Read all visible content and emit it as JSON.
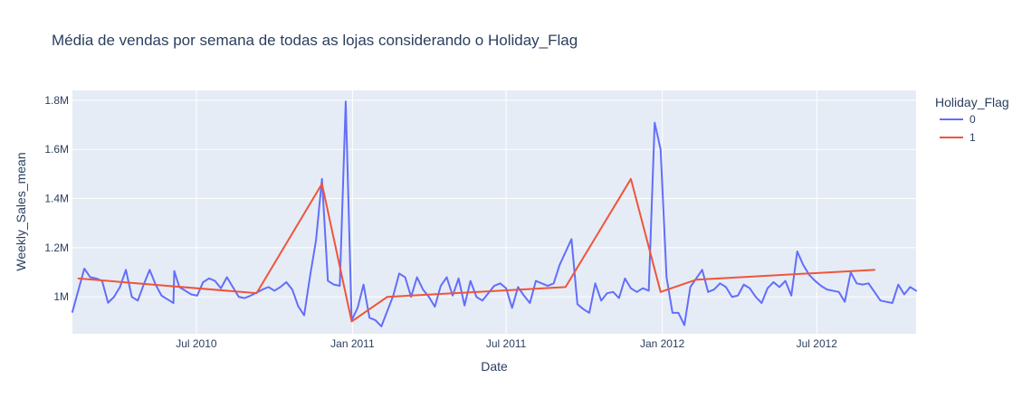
{
  "chart_data": {
    "type": "line",
    "title": "Média de vendas por semana de todas as lojas considerando o Holiday_Flag",
    "xlabel": "Date",
    "ylabel": "Weekly_Sales_mean",
    "x_range": [
      "2010-02-05",
      "2012-10-26"
    ],
    "y_range": [
      850000,
      1840000
    ],
    "x_ticks": [
      {
        "date": "2010-07-01",
        "label": "Jul 2010"
      },
      {
        "date": "2011-01-01",
        "label": "Jan 2011"
      },
      {
        "date": "2011-07-01",
        "label": "Jul 2011"
      },
      {
        "date": "2012-01-01",
        "label": "Jan 2012"
      },
      {
        "date": "2012-07-01",
        "label": "Jul 2012"
      }
    ],
    "y_ticks": [
      {
        "value": 1000000,
        "label": "1M"
      },
      {
        "value": 1200000,
        "label": "1.2M"
      },
      {
        "value": 1400000,
        "label": "1.4M"
      },
      {
        "value": 1600000,
        "label": "1.6M"
      },
      {
        "value": 1800000,
        "label": "1.8M"
      }
    ],
    "grid": true,
    "legend": {
      "title": "Holiday_Flag",
      "placement": "top-right"
    },
    "series": [
      {
        "name": "0",
        "color": "#636efa",
        "points": [
          [
            "2010-02-05",
            939000
          ],
          [
            "2010-02-19",
            1115000
          ],
          [
            "2010-02-26",
            1080000
          ],
          [
            "2010-03-05",
            1075000
          ],
          [
            "2010-03-12",
            1065000
          ],
          [
            "2010-03-19",
            976000
          ],
          [
            "2010-03-26",
            1000000
          ],
          [
            "2010-04-02",
            1040000
          ],
          [
            "2010-04-09",
            1110000
          ],
          [
            "2010-04-16",
            1000000
          ],
          [
            "2010-04-23",
            985000
          ],
          [
            "2010-04-30",
            1050000
          ],
          [
            "2010-05-07",
            1110000
          ],
          [
            "2010-05-14",
            1050000
          ],
          [
            "2010-05-21",
            1005000
          ],
          [
            "2010-05-28",
            990000
          ],
          [
            "2010-06-04",
            975000
          ],
          [
            "2010-06-05",
            1105000
          ],
          [
            "2010-06-11",
            1040000
          ],
          [
            "2010-06-18",
            1025000
          ],
          [
            "2010-06-25",
            1010000
          ],
          [
            "2010-07-02",
            1005000
          ],
          [
            "2010-07-09",
            1060000
          ],
          [
            "2010-07-16",
            1075000
          ],
          [
            "2010-07-23",
            1065000
          ],
          [
            "2010-07-30",
            1035000
          ],
          [
            "2010-08-06",
            1080000
          ],
          [
            "2010-08-13",
            1040000
          ],
          [
            "2010-08-20",
            1000000
          ],
          [
            "2010-08-27",
            995000
          ],
          [
            "2010-09-03",
            1005000
          ],
          [
            "2010-09-17",
            1030000
          ],
          [
            "2010-09-24",
            1040000
          ],
          [
            "2010-10-01",
            1025000
          ],
          [
            "2010-10-08",
            1040000
          ],
          [
            "2010-10-15",
            1060000
          ],
          [
            "2010-10-22",
            1030000
          ],
          [
            "2010-10-29",
            962000
          ],
          [
            "2010-11-05",
            925000
          ],
          [
            "2010-11-12",
            1085000
          ],
          [
            "2010-11-19",
            1230000
          ],
          [
            "2010-11-26",
            1480000
          ],
          [
            "2010-12-03",
            1065000
          ],
          [
            "2010-12-10",
            1050000
          ],
          [
            "2010-12-17",
            1045000
          ],
          [
            "2010-12-24",
            1795000
          ],
          [
            "2010-12-31",
            905000
          ],
          [
            "2011-01-07",
            955000
          ],
          [
            "2011-01-14",
            1050000
          ],
          [
            "2011-01-21",
            915000
          ],
          [
            "2011-01-28",
            905000
          ],
          [
            "2011-02-04",
            880000
          ],
          [
            "2011-02-18",
            1005000
          ],
          [
            "2011-02-25",
            1095000
          ],
          [
            "2011-03-04",
            1080000
          ],
          [
            "2011-03-11",
            1000000
          ],
          [
            "2011-03-18",
            1080000
          ],
          [
            "2011-03-25",
            1030000
          ],
          [
            "2011-04-01",
            1000000
          ],
          [
            "2011-04-08",
            960000
          ],
          [
            "2011-04-15",
            1045000
          ],
          [
            "2011-04-22",
            1080000
          ],
          [
            "2011-04-29",
            1005000
          ],
          [
            "2011-05-06",
            1075000
          ],
          [
            "2011-05-13",
            965000
          ],
          [
            "2011-05-20",
            1065000
          ],
          [
            "2011-05-27",
            1000000
          ],
          [
            "2011-06-03",
            985000
          ],
          [
            "2011-06-17",
            1045000
          ],
          [
            "2011-06-24",
            1055000
          ],
          [
            "2011-07-01",
            1035000
          ],
          [
            "2011-07-08",
            955000
          ],
          [
            "2011-07-15",
            1040000
          ],
          [
            "2011-07-22",
            1005000
          ],
          [
            "2011-07-29",
            975000
          ],
          [
            "2011-08-05",
            1065000
          ],
          [
            "2011-08-12",
            1055000
          ],
          [
            "2011-08-19",
            1045000
          ],
          [
            "2011-08-26",
            1055000
          ],
          [
            "2011-09-02",
            1130000
          ],
          [
            "2011-09-16",
            1235000
          ],
          [
            "2011-09-23",
            970000
          ],
          [
            "2011-09-30",
            950000
          ],
          [
            "2011-10-07",
            935000
          ],
          [
            "2011-10-14",
            1055000
          ],
          [
            "2011-10-21",
            985000
          ],
          [
            "2011-10-28",
            1015000
          ],
          [
            "2011-11-04",
            1020000
          ],
          [
            "2011-11-11",
            995000
          ],
          [
            "2011-11-18",
            1075000
          ],
          [
            "2011-11-25",
            1035000
          ],
          [
            "2011-12-02",
            1020000
          ],
          [
            "2011-12-09",
            1035000
          ],
          [
            "2011-12-16",
            1025000
          ],
          [
            "2011-12-23",
            1709000
          ],
          [
            "2011-12-30",
            1600000
          ],
          [
            "2012-01-06",
            1080000
          ],
          [
            "2012-01-13",
            935000
          ],
          [
            "2012-01-20",
            935000
          ],
          [
            "2012-01-27",
            885000
          ],
          [
            "2012-02-03",
            1040000
          ],
          [
            "2012-02-17",
            1110000
          ],
          [
            "2012-02-24",
            1020000
          ],
          [
            "2012-03-02",
            1030000
          ],
          [
            "2012-03-09",
            1055000
          ],
          [
            "2012-03-16",
            1040000
          ],
          [
            "2012-03-23",
            1000000
          ],
          [
            "2012-03-30",
            1005000
          ],
          [
            "2012-04-06",
            1050000
          ],
          [
            "2012-04-13",
            1035000
          ],
          [
            "2012-04-20",
            1000000
          ],
          [
            "2012-04-27",
            975000
          ],
          [
            "2012-05-04",
            1035000
          ],
          [
            "2012-05-11",
            1060000
          ],
          [
            "2012-05-18",
            1040000
          ],
          [
            "2012-05-25",
            1065000
          ],
          [
            "2012-06-01",
            1005000
          ],
          [
            "2012-06-08",
            1185000
          ],
          [
            "2012-06-15",
            1130000
          ],
          [
            "2012-06-22",
            1090000
          ],
          [
            "2012-06-29",
            1065000
          ],
          [
            "2012-07-06",
            1045000
          ],
          [
            "2012-07-13",
            1030000
          ],
          [
            "2012-07-20",
            1025000
          ],
          [
            "2012-07-27",
            1020000
          ],
          [
            "2012-08-03",
            980000
          ],
          [
            "2012-08-10",
            1100000
          ],
          [
            "2012-08-17",
            1055000
          ],
          [
            "2012-08-24",
            1050000
          ],
          [
            "2012-08-31",
            1055000
          ],
          [
            "2012-09-14",
            985000
          ],
          [
            "2012-09-21",
            980000
          ],
          [
            "2012-09-28",
            975000
          ],
          [
            "2012-10-05",
            1050000
          ],
          [
            "2012-10-12",
            1010000
          ],
          [
            "2012-10-19",
            1040000
          ],
          [
            "2012-10-26",
            1025000
          ]
        ]
      },
      {
        "name": "1",
        "color": "#ef553b",
        "points": [
          [
            "2010-02-12",
            1075000
          ],
          [
            "2010-09-10",
            1015000
          ],
          [
            "2010-11-26",
            1460000
          ],
          [
            "2010-12-31",
            900000
          ],
          [
            "2011-02-11",
            1000000
          ],
          [
            "2011-09-09",
            1040000
          ],
          [
            "2011-11-25",
            1480000
          ],
          [
            "2011-12-30",
            1020000
          ],
          [
            "2012-02-10",
            1070000
          ],
          [
            "2012-09-07",
            1110000
          ]
        ]
      }
    ]
  }
}
